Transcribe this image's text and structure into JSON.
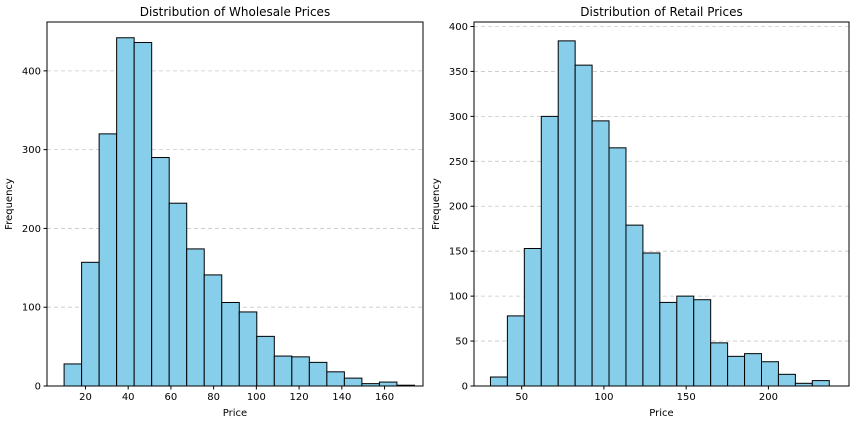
{
  "colors": {
    "bar_fill": "#87CEEB",
    "bar_edge": "#000000",
    "grid": "#c8c8c8"
  },
  "chart_data": [
    {
      "type": "bar",
      "title": "Distribution of Wholesale Prices",
      "xlabel": "Price",
      "ylabel": "Frequency",
      "grid": "y-dashed",
      "xlim": [
        2,
        178
      ],
      "ylim": [
        0,
        462
      ],
      "xticks": [
        20,
        40,
        60,
        80,
        100,
        120,
        140,
        160
      ],
      "yticks": [
        0,
        100,
        200,
        300,
        400
      ],
      "bin_edges": [
        10,
        18.2,
        26.4,
        34.6,
        42.8,
        51,
        59.2,
        67.4,
        75.6,
        83.8,
        92,
        100.2,
        108.4,
        116.6,
        124.8,
        133,
        141.2,
        149.4,
        157.6,
        165.8,
        174
      ],
      "values": [
        28,
        157,
        320,
        442,
        436,
        290,
        232,
        174,
        141,
        106,
        94,
        63,
        38,
        37,
        30,
        18,
        10,
        3,
        5,
        1
      ]
    },
    {
      "type": "bar",
      "title": "Distribution of Retail Prices",
      "xlabel": "Price",
      "ylabel": "Frequency",
      "grid": "y-dashed",
      "xlim": [
        21,
        249
      ],
      "ylim": [
        0,
        405
      ],
      "xticks": [
        50,
        100,
        150,
        200
      ],
      "yticks": [
        0,
        50,
        100,
        150,
        200,
        250,
        300,
        350,
        400
      ],
      "bin_edges": [
        31,
        41.3,
        51.6,
        61.9,
        72.2,
        82.5,
        92.8,
        103.1,
        113.4,
        123.7,
        134,
        144.3,
        154.6,
        164.9,
        175.2,
        185.5,
        195.8,
        206.1,
        216.4,
        226.7,
        237
      ],
      "values": [
        10,
        78,
        153,
        300,
        384,
        357,
        295,
        265,
        179,
        148,
        93,
        100,
        96,
        48,
        33,
        36,
        27,
        13,
        3,
        6
      ]
    }
  ]
}
